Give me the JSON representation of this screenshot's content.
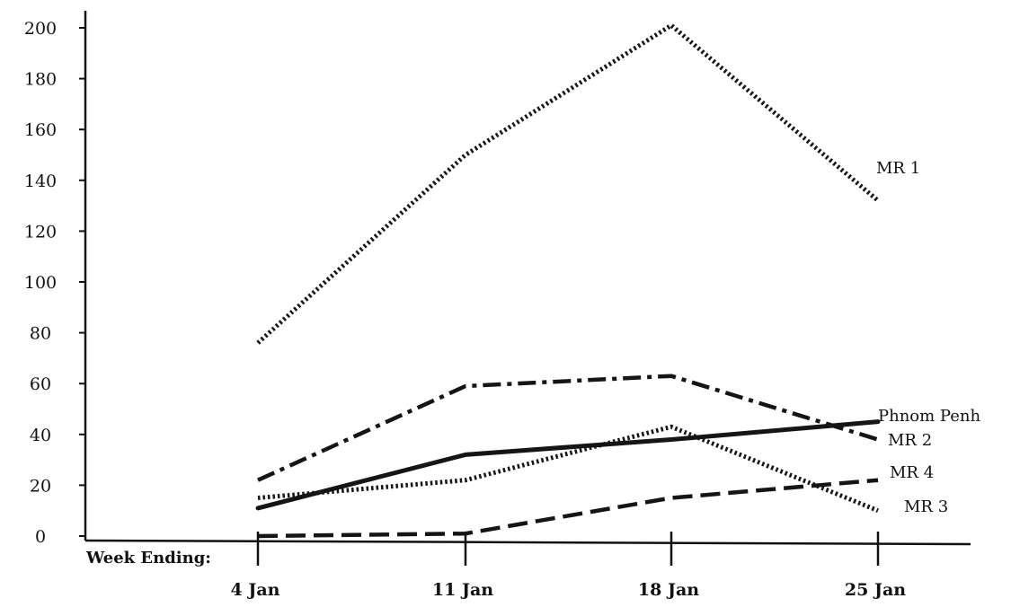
{
  "chart_data": {
    "type": "line",
    "x": [
      "4 Jan",
      "11 Jan",
      "18 Jan",
      "25 Jan"
    ],
    "xlabel": "Week Ending:",
    "ylabel": "",
    "ylim": [
      0,
      200
    ],
    "yticks": [
      0,
      20,
      40,
      60,
      80,
      100,
      120,
      140,
      160,
      180,
      200
    ],
    "grid": false,
    "legend": "direct labels at right end of each line",
    "series": [
      {
        "name": "MR 1",
        "values": [
          76,
          150,
          201,
          132
        ],
        "style": "dotted"
      },
      {
        "name": "Phnom Penh",
        "values": [
          11,
          32,
          38,
          45
        ],
        "style": "solid"
      },
      {
        "name": "MR 2",
        "values": [
          22,
          59,
          63,
          38
        ],
        "style": "dash-dot"
      },
      {
        "name": "MR 4",
        "values": [
          0,
          1,
          15,
          22
        ],
        "style": "dashed"
      },
      {
        "name": "MR 3",
        "values": [
          15,
          22,
          43,
          10
        ],
        "style": "dotted"
      }
    ]
  }
}
